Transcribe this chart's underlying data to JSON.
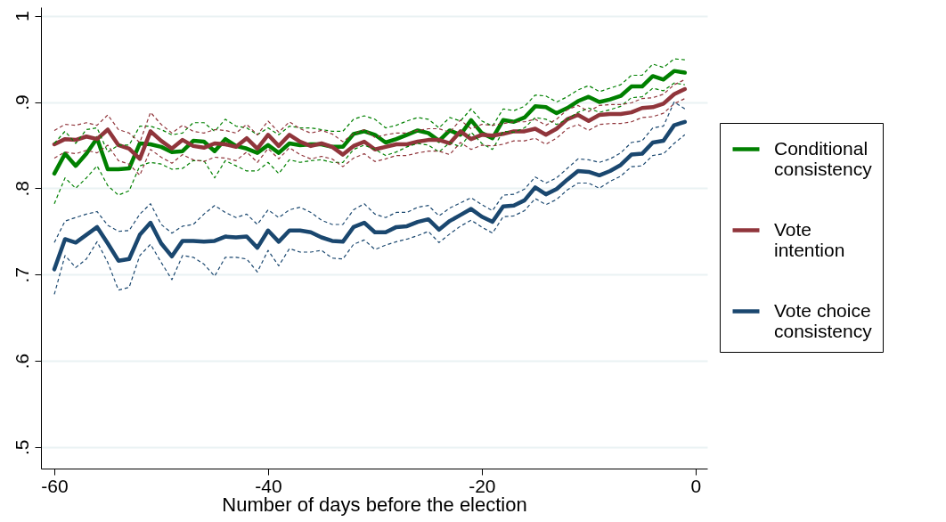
{
  "chart_data": {
    "type": "line",
    "xlabel": "Number of days before the election",
    "x": [
      -60,
      -59,
      -58,
      -57,
      -56,
      -55,
      -54,
      -53,
      -52,
      -51,
      -50,
      -49,
      -48,
      -47,
      -46,
      -45,
      -44,
      -43,
      -42,
      -41,
      -40,
      -39,
      -38,
      -37,
      -36,
      -35,
      -34,
      -33,
      -32,
      -31,
      -30,
      -29,
      -28,
      -27,
      -26,
      -25,
      -24,
      -23,
      -22,
      -21,
      -20,
      -19,
      -18,
      -17,
      -16,
      -15,
      -14,
      -13,
      -12,
      -11,
      -10,
      -9,
      -8,
      -7,
      -6,
      -5,
      -4,
      -3,
      -2,
      -1
    ],
    "series": [
      {
        "name": "Conditional consistency",
        "color": "#008000",
        "values": [
          0.817,
          0.84,
          0.826,
          0.84,
          0.858,
          0.822,
          0.822,
          0.823,
          0.852,
          0.851,
          0.848,
          0.842,
          0.843,
          0.855,
          0.854,
          0.843,
          0.857,
          0.849,
          0.846,
          0.841,
          0.85,
          0.841,
          0.852,
          0.85,
          0.851,
          0.851,
          0.848,
          0.848,
          0.863,
          0.866,
          0.862,
          0.853,
          0.857,
          0.862,
          0.867,
          0.864,
          0.855,
          0.867,
          0.862,
          0.879,
          0.864,
          0.858,
          0.879,
          0.877,
          0.882,
          0.895,
          0.894,
          0.887,
          0.893,
          0.901,
          0.906,
          0.9,
          0.903,
          0.907,
          0.918,
          0.918,
          0.93,
          0.926,
          0.936,
          0.934
        ]
      },
      {
        "name": "Vote intention",
        "color": "#90353b",
        "values": [
          0.851,
          0.857,
          0.856,
          0.86,
          0.857,
          0.868,
          0.85,
          0.846,
          0.834,
          0.866,
          0.855,
          0.846,
          0.856,
          0.849,
          0.847,
          0.852,
          0.851,
          0.848,
          0.858,
          0.846,
          0.862,
          0.849,
          0.862,
          0.854,
          0.849,
          0.852,
          0.848,
          0.839,
          0.849,
          0.854,
          0.845,
          0.848,
          0.851,
          0.851,
          0.854,
          0.856,
          0.856,
          0.852,
          0.866,
          0.857,
          0.862,
          0.861,
          0.863,
          0.866,
          0.866,
          0.869,
          0.862,
          0.869,
          0.88,
          0.885,
          0.878,
          0.885,
          0.886,
          0.886,
          0.888,
          0.893,
          0.894,
          0.898,
          0.909,
          0.915
        ]
      },
      {
        "name": "Vote choice consistency",
        "color": "#1a476f",
        "values": [
          0.706,
          0.741,
          0.737,
          0.746,
          0.755,
          0.736,
          0.716,
          0.718,
          0.746,
          0.76,
          0.736,
          0.721,
          0.739,
          0.739,
          0.738,
          0.739,
          0.744,
          0.743,
          0.744,
          0.731,
          0.751,
          0.738,
          0.751,
          0.751,
          0.749,
          0.743,
          0.739,
          0.738,
          0.755,
          0.76,
          0.749,
          0.749,
          0.755,
          0.756,
          0.761,
          0.764,
          0.752,
          0.762,
          0.769,
          0.776,
          0.767,
          0.761,
          0.779,
          0.78,
          0.786,
          0.801,
          0.793,
          0.799,
          0.81,
          0.82,
          0.819,
          0.815,
          0.82,
          0.827,
          0.839,
          0.84,
          0.853,
          0.855,
          0.873,
          0.877
        ]
      },
      {
        "color": "#008000",
        "line_style": "dashed",
        "values": [
          0.782,
          0.812,
          0.8,
          0.812,
          0.826,
          0.803,
          0.792,
          0.797,
          0.826,
          0.83,
          0.828,
          0.822,
          0.823,
          0.832,
          0.832,
          0.812,
          0.832,
          0.826,
          0.82,
          0.82,
          0.83,
          0.817,
          0.833,
          0.83,
          0.832,
          0.833,
          0.83,
          0.83,
          0.845,
          0.85,
          0.845,
          0.838,
          0.842,
          0.848,
          0.852,
          0.85,
          0.842,
          0.853,
          0.848,
          0.865,
          0.852,
          0.845,
          0.866,
          0.865,
          0.87,
          0.882,
          0.88,
          0.874,
          0.88,
          0.888,
          0.893,
          0.888,
          0.891,
          0.895,
          0.905,
          0.906,
          0.916,
          0.913,
          0.922,
          0.92
        ]
      },
      {
        "color": "#008000",
        "line_style": "dashed",
        "values": [
          0.852,
          0.866,
          0.852,
          0.868,
          0.87,
          0.842,
          0.85,
          0.85,
          0.872,
          0.872,
          0.868,
          0.862,
          0.864,
          0.876,
          0.876,
          0.866,
          0.88,
          0.872,
          0.87,
          0.862,
          0.87,
          0.862,
          0.872,
          0.87,
          0.87,
          0.868,
          0.866,
          0.866,
          0.88,
          0.884,
          0.88,
          0.87,
          0.873,
          0.878,
          0.882,
          0.88,
          0.87,
          0.882,
          0.878,
          0.892,
          0.878,
          0.872,
          0.892,
          0.89,
          0.895,
          0.908,
          0.907,
          0.9,
          0.906,
          0.914,
          0.919,
          0.912,
          0.916,
          0.92,
          0.931,
          0.931,
          0.944,
          0.94,
          0.95,
          0.949
        ]
      },
      {
        "color": "#90353b",
        "line_style": "dashed",
        "values": [
          0.835,
          0.842,
          0.84,
          0.844,
          0.841,
          0.85,
          0.832,
          0.828,
          0.815,
          0.845,
          0.836,
          0.829,
          0.839,
          0.833,
          0.831,
          0.836,
          0.835,
          0.832,
          0.842,
          0.83,
          0.846,
          0.834,
          0.847,
          0.839,
          0.834,
          0.837,
          0.834,
          0.825,
          0.835,
          0.84,
          0.831,
          0.834,
          0.838,
          0.838,
          0.841,
          0.843,
          0.843,
          0.839,
          0.853,
          0.845,
          0.85,
          0.849,
          0.851,
          0.855,
          0.855,
          0.858,
          0.851,
          0.858,
          0.869,
          0.874,
          0.867,
          0.874,
          0.875,
          0.875,
          0.877,
          0.882,
          0.883,
          0.887,
          0.898,
          0.904
        ]
      },
      {
        "color": "#90353b",
        "line_style": "dashed",
        "values": [
          0.867,
          0.874,
          0.873,
          0.876,
          0.873,
          0.885,
          0.868,
          0.864,
          0.853,
          0.888,
          0.874,
          0.864,
          0.873,
          0.866,
          0.864,
          0.868,
          0.867,
          0.864,
          0.874,
          0.862,
          0.878,
          0.865,
          0.877,
          0.869,
          0.864,
          0.867,
          0.863,
          0.854,
          0.863,
          0.868,
          0.859,
          0.862,
          0.864,
          0.864,
          0.867,
          0.869,
          0.869,
          0.865,
          0.879,
          0.869,
          0.874,
          0.873,
          0.875,
          0.877,
          0.877,
          0.88,
          0.873,
          0.88,
          0.891,
          0.896,
          0.889,
          0.896,
          0.897,
          0.897,
          0.899,
          0.904,
          0.905,
          0.909,
          0.92,
          0.926
        ]
      },
      {
        "color": "#1a476f",
        "line_style": "dashed",
        "values": [
          0.677,
          0.722,
          0.708,
          0.718,
          0.738,
          0.714,
          0.682,
          0.685,
          0.722,
          0.735,
          0.714,
          0.694,
          0.722,
          0.72,
          0.712,
          0.698,
          0.72,
          0.72,
          0.718,
          0.703,
          0.728,
          0.71,
          0.73,
          0.726,
          0.726,
          0.728,
          0.719,
          0.718,
          0.735,
          0.74,
          0.729,
          0.734,
          0.738,
          0.741,
          0.745,
          0.75,
          0.737,
          0.747,
          0.756,
          0.763,
          0.755,
          0.748,
          0.767,
          0.768,
          0.774,
          0.788,
          0.781,
          0.787,
          0.798,
          0.806,
          0.806,
          0.8,
          0.808,
          0.814,
          0.825,
          0.826,
          0.838,
          0.84,
          0.852,
          0.862
        ]
      },
      {
        "color": "#1a476f",
        "line_style": "dashed",
        "values": [
          0.737,
          0.762,
          0.766,
          0.77,
          0.773,
          0.757,
          0.75,
          0.751,
          0.77,
          0.782,
          0.758,
          0.748,
          0.756,
          0.758,
          0.77,
          0.78,
          0.772,
          0.766,
          0.77,
          0.758,
          0.775,
          0.766,
          0.775,
          0.778,
          0.772,
          0.763,
          0.758,
          0.758,
          0.775,
          0.782,
          0.77,
          0.766,
          0.772,
          0.772,
          0.778,
          0.78,
          0.768,
          0.777,
          0.783,
          0.789,
          0.781,
          0.774,
          0.792,
          0.793,
          0.799,
          0.813,
          0.806,
          0.812,
          0.823,
          0.834,
          0.833,
          0.83,
          0.834,
          0.841,
          0.853,
          0.855,
          0.87,
          0.872,
          0.9,
          0.892
        ]
      }
    ],
    "xlim": [
      -61.25,
      1.1
    ],
    "xticks": [
      -60,
      -40,
      -20,
      0
    ],
    "ylim": [
      0.475,
      1.01
    ],
    "yticks": [
      {
        "value": 0.5,
        "label": ".5"
      },
      {
        "value": 0.6,
        "label": ".6"
      },
      {
        "value": 0.7,
        "label": ".7"
      },
      {
        "value": 0.8,
        "label": ".8"
      },
      {
        "value": 0.9,
        "label": ".9"
      },
      {
        "value": 1,
        "label": "1"
      }
    ],
    "grid": "y",
    "legend": "right",
    "line_style": "solid"
  }
}
